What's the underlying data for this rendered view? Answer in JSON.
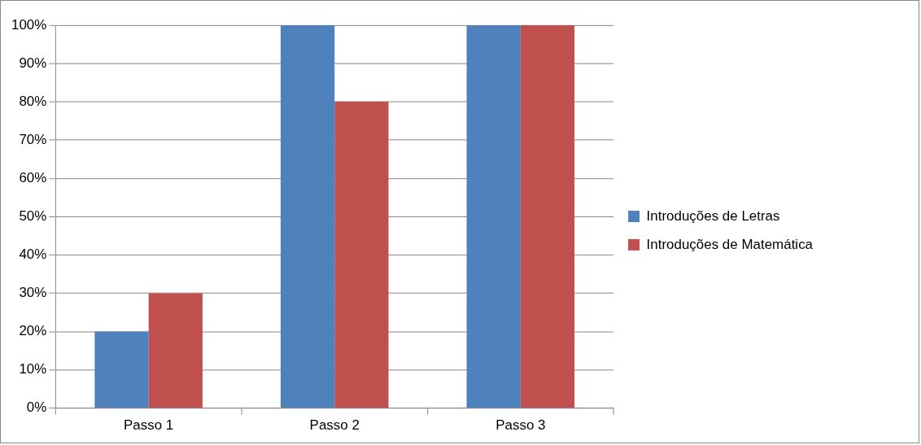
{
  "chart_data": {
    "type": "bar",
    "categories": [
      "Passo 1",
      "Passo 2",
      "Passo 3"
    ],
    "series": [
      {
        "name": "Introduções de Letras",
        "color": "#4f81bd",
        "values": [
          20,
          100,
          100
        ]
      },
      {
        "name": "Introduções de Matemática",
        "color": "#c0504d",
        "values": [
          30,
          80,
          100
        ]
      }
    ],
    "ylim": [
      0,
      100
    ],
    "yticks": [
      {
        "value": 0,
        "label": "0%"
      },
      {
        "value": 10,
        "label": "10%"
      },
      {
        "value": 20,
        "label": "20%"
      },
      {
        "value": 30,
        "label": "30%"
      },
      {
        "value": 40,
        "label": "40%"
      },
      {
        "value": 50,
        "label": "50%"
      },
      {
        "value": 60,
        "label": "60%"
      },
      {
        "value": 70,
        "label": "70%"
      },
      {
        "value": 80,
        "label": "80%"
      },
      {
        "value": 90,
        "label": "90%"
      },
      {
        "value": 100,
        "label": "100%"
      }
    ],
    "grid": "y",
    "legend": "right"
  }
}
